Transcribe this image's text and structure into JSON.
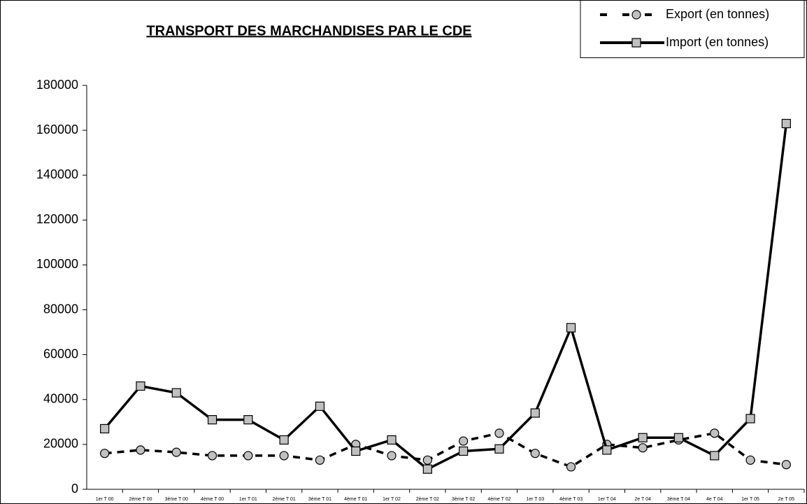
{
  "chart_data": {
    "type": "line",
    "title": "TRANSPORT DES MARCHANDISES PAR LE CDE",
    "categories": [
      "1er T 00",
      "2ème T 00",
      "3ème T 00",
      "4ème T 00",
      "1er T 01",
      "2ème T 01",
      "3ème T 01",
      "4ème T 01",
      "1er T 02",
      "2ème T 02",
      "3ème T 02",
      "4ème T 02",
      "1er T 03",
      "4ème T 03",
      "1er T 04",
      "2e T 04",
      "3ème T 04",
      "4e T 04",
      "1er T 05",
      "2e T 05"
    ],
    "series": [
      {
        "name": "Export (en tonnes)",
        "color": "#000000",
        "marker": "circle",
        "dashed": true,
        "values": [
          16000,
          17500,
          16500,
          15000,
          15000,
          15000,
          13000,
          20000,
          15000,
          13000,
          21500,
          25000,
          16000,
          10000,
          20000,
          18500,
          22000,
          25000,
          13000,
          11000
        ]
      },
      {
        "name": "Import (en tonnes)",
        "color": "#000000",
        "marker": "square",
        "dashed": false,
        "values": [
          27000,
          46000,
          43000,
          31000,
          31000,
          22000,
          37000,
          17000,
          22000,
          9000,
          17000,
          18000,
          34000,
          72000,
          17500,
          23000,
          23000,
          15000,
          31500,
          163000
        ]
      }
    ],
    "ylim": [
      0,
      180000
    ],
    "yticks": [
      0,
      20000,
      40000,
      60000,
      80000,
      100000,
      120000,
      140000,
      160000,
      180000
    ],
    "grid": false,
    "legend": "top-right"
  }
}
